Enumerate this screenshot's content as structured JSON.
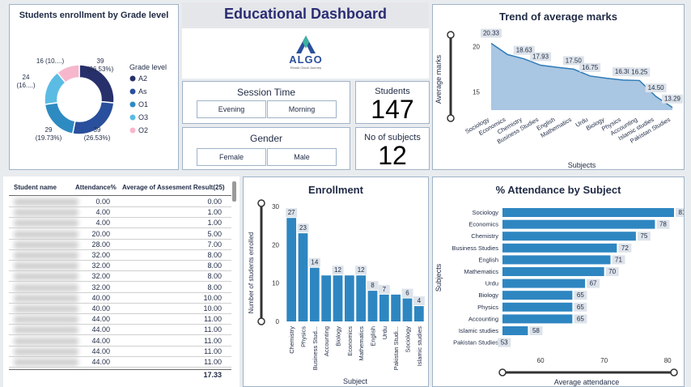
{
  "dashboard": {
    "title": "Educational Dashboard",
    "logo_text": "ALGO",
    "logo_tagline": "Ebook Cloud Journey"
  },
  "donut": {
    "title": "Students enrollment by Grade level",
    "legend_title": "Grade level",
    "legend": [
      "A2",
      "As",
      "O1",
      "O3",
      "O2"
    ],
    "slices": [
      {
        "label": "A2",
        "value": 39,
        "text1": "39",
        "text2": "(26.53%)",
        "color": "#27306b"
      },
      {
        "label": "As",
        "value": 39,
        "text1": "39",
        "text2": "(26.53%)",
        "color": "#2a4f9c"
      },
      {
        "label": "O1",
        "value": 29,
        "text1": "29",
        "text2": "(19.73%)",
        "color": "#2e8bc2"
      },
      {
        "label": "O3",
        "value": 24,
        "text1": "24",
        "text2": "(16....)",
        "color": "#5bbce3"
      },
      {
        "label": "O2",
        "value": 16,
        "text1": "16 (10....)",
        "text2": "",
        "color": "#f6b7cc"
      }
    ]
  },
  "session": {
    "label": "Session Time",
    "options": [
      "Evening",
      "Morning"
    ]
  },
  "gender": {
    "label": "Gender",
    "options": [
      "Female",
      "Male"
    ]
  },
  "kpis": {
    "students_label": "Students",
    "students_value": "147",
    "subjects_label": "No of subjects",
    "subjects_value": "12"
  },
  "table": {
    "headers": [
      "Student name",
      "Attendance%",
      "Average of Assesment Result(25)"
    ],
    "rows": [
      [
        "0.00",
        "0.00"
      ],
      [
        "4.00",
        "1.00"
      ],
      [
        "4.00",
        "1.00"
      ],
      [
        "20.00",
        "5.00"
      ],
      [
        "28.00",
        "7.00"
      ],
      [
        "32.00",
        "8.00"
      ],
      [
        "32.00",
        "8.00"
      ],
      [
        "32.00",
        "8.00"
      ],
      [
        "32.00",
        "8.00"
      ],
      [
        "40.00",
        "10.00"
      ],
      [
        "40.00",
        "10.00"
      ],
      [
        "44.00",
        "11.00"
      ],
      [
        "44.00",
        "11.00"
      ],
      [
        "44.00",
        "11.00"
      ],
      [
        "44.00",
        "11.00"
      ],
      [
        "44.00",
        "11.00"
      ]
    ],
    "total": "17.33"
  },
  "chart_data": [
    {
      "type": "area",
      "title": "Trend of average marks",
      "xlabel": "Subjects",
      "ylabel": "Average marks",
      "categories": [
        "Sociology",
        "Economics",
        "Chemistry",
        "Business Studies",
        "English",
        "Mathematics",
        "Urdu",
        "Biology",
        "Physics",
        "Accounting",
        "Islamic studies",
        "Pakistan Studies"
      ],
      "values": [
        20.33,
        19.1,
        18.63,
        17.93,
        17.7,
        17.5,
        16.75,
        16.5,
        16.3,
        16.25,
        14.5,
        13.29
      ],
      "value_labels": [
        "20.33",
        "",
        "18.63",
        "17.93",
        "",
        "17.50",
        "16.75",
        "",
        "16.30",
        "16.25",
        "14.50",
        "13.29"
      ],
      "yticks": [
        "20",
        "15"
      ],
      "ylim": [
        13,
        21
      ],
      "color": "#2e7bb8"
    },
    {
      "type": "bar",
      "title": "Enrollment",
      "xlabel": "Subject",
      "ylabel": "Number of students enrolled",
      "categories": [
        "Chemistry",
        "Physics",
        "Business Stud...",
        "Accounting",
        "Biology",
        "Economics",
        "Mathematics",
        "English",
        "Urdu",
        "Pakistan Studi...",
        "Sociology",
        "Islamic studies"
      ],
      "values": [
        27,
        23,
        14,
        12,
        12,
        12,
        12,
        8,
        7,
        7,
        6,
        4
      ],
      "value_labels": [
        "27",
        "23",
        "14",
        "",
        "12",
        "",
        "12",
        "8",
        "7",
        "",
        "6",
        "4"
      ],
      "yticks": [
        "0",
        "10",
        "20",
        "30"
      ],
      "ylim": [
        0,
        30
      ],
      "color": "#2e86c1"
    },
    {
      "type": "bar",
      "orientation": "horizontal",
      "title": "% Attendance by Subject",
      "xlabel": "Average attendance",
      "ylabel": "Subjects",
      "categories": [
        "Sociology",
        "Economics",
        "Chemistry",
        "Business Studies",
        "English",
        "Mathematics",
        "Urdu",
        "Biology",
        "Physics",
        "Accounting",
        "Islamic studies",
        "Pakistan Studies"
      ],
      "values": [
        81,
        78,
        75,
        72,
        71,
        70,
        67,
        65,
        65,
        65,
        58,
        53
      ],
      "xticks": [
        "60",
        "70",
        "80"
      ],
      "xlim": [
        54,
        81
      ],
      "color": "#2e86c1"
    }
  ]
}
